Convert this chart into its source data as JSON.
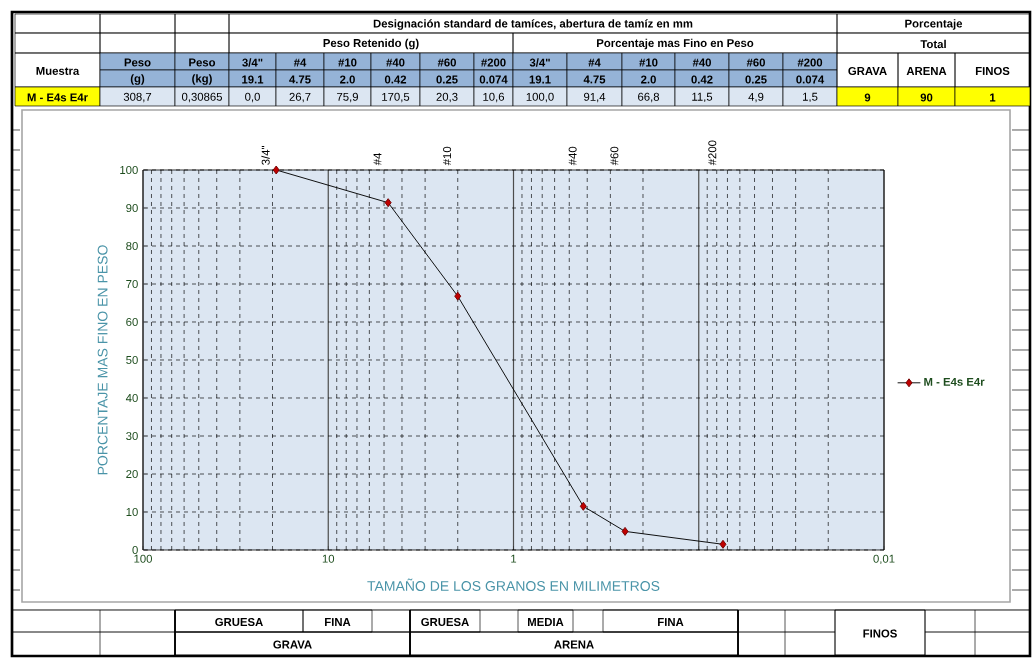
{
  "chart_data": {
    "type": "line",
    "xlabel": "TAMAÑO DE LOS GRANOS  EN MILIMETROS",
    "ylabel": "PORCENTAJE  MAS  FINO  EN  PESO",
    "x": [
      19.1,
      4.75,
      2.0,
      0.42,
      0.25,
      0.074
    ],
    "series": [
      {
        "name": "M - E4s E4r",
        "color": "#c00000",
        "values": [
          100,
          91.4,
          66.8,
          11.5,
          4.9,
          1.5
        ]
      }
    ],
    "log": "x",
    "xlim": [
      100,
      0.01
    ],
    "xticks": [
      100,
      10,
      1,
      {
        "value": 0.1,
        "label": null
      },
      {
        "value": 0.01,
        "label": "0,01"
      }
    ],
    "ylim": [
      0,
      100
    ],
    "yticks": [
      0,
      10,
      20,
      30,
      40,
      50,
      60,
      70,
      80,
      90,
      100
    ],
    "grid": true,
    "legend": "right",
    "marker": "diamond",
    "line_style": "solid",
    "annotations": [
      "Designación standard de tamíces,  abertura de tamíz en mm",
      "Porcentaje",
      "Peso Retenido (g)",
      "Porcentaje mas Fino en Peso",
      "Total",
      "Muestra",
      "Peso",
      "(g)",
      "Peso",
      "(kg)",
      "3/4\"",
      "19.1",
      "#4",
      "4.75",
      "#10",
      "2.0",
      "#40",
      "0.42",
      "#60",
      "0.25",
      "#200",
      "0.074",
      "3/4\"",
      "19.1",
      "#4",
      "4.75",
      "#10",
      "2.0",
      "#40",
      "0.42",
      "#60",
      "0.25",
      "#200",
      "0.074",
      "GRAVA",
      "ARENA",
      "FINOS",
      "M - E4s E4r",
      "308,7",
      "0,30865",
      "0,0",
      "26,7",
      "75,9",
      "170,5",
      "20,3",
      "10,6",
      "100,0",
      "91,4",
      "66,8",
      "11,5",
      "4,9",
      "1,5",
      "9",
      "90",
      "1",
      "GRUESA",
      "FINA",
      "GRUESA",
      "MEDIA",
      "FINA",
      "FINOS",
      "GRAVA",
      "ARENA",
      "3/4\"",
      "#4",
      "#10",
      "#40",
      "#60",
      "#200"
    ]
  }
}
